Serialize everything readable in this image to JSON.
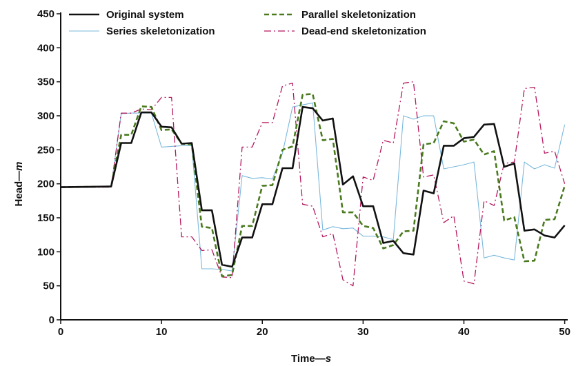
{
  "chart_data": {
    "type": "line",
    "xlabel": "Time",
    "xlabel_unit": "s",
    "ylabel": "Head",
    "ylabel_unit": "m",
    "label_dash": "—",
    "xlim": [
      0,
      50.3
    ],
    "ylim": [
      0,
      450
    ],
    "xticks": [
      0,
      10,
      20,
      30,
      40,
      50
    ],
    "yticks": [
      0,
      50,
      100,
      150,
      200,
      250,
      300,
      350,
      400,
      450
    ],
    "grid": false,
    "legend_position": "top",
    "series": [
      {
        "name": "Original system",
        "color": "#111111",
        "style": "solid-thick",
        "x": [
          0,
          5,
          6,
          7,
          8,
          9,
          10,
          11,
          12,
          13,
          14,
          15,
          16,
          17,
          18,
          19,
          20,
          21,
          22,
          23,
          24,
          25,
          26,
          27,
          28,
          29,
          30,
          31,
          32,
          33,
          34,
          35,
          36,
          37,
          38,
          39,
          40,
          41,
          42,
          43,
          44,
          45,
          46,
          47,
          48,
          49,
          50
        ],
        "y": [
          195,
          196,
          260,
          260,
          305,
          305,
          284,
          283,
          259,
          260,
          161,
          161,
          81,
          78,
          121,
          121,
          170,
          170,
          223,
          223,
          313,
          311,
          293,
          296,
          199,
          211,
          167,
          167,
          113,
          116,
          98,
          96,
          190,
          186,
          256,
          256,
          267,
          269,
          287,
          288,
          225,
          230,
          131,
          133,
          124,
          121,
          139
        ]
      },
      {
        "name": "Parallel skeletonization",
        "color": "#4a7a1e",
        "style": "dashed",
        "x": [
          0,
          5,
          6,
          7,
          8,
          9,
          10,
          11,
          12,
          13,
          14,
          15,
          16,
          17,
          18,
          19,
          20,
          21,
          22,
          23,
          24,
          25,
          26,
          27,
          28,
          29,
          30,
          31,
          32,
          33,
          34,
          35,
          36,
          37,
          38,
          39,
          40,
          41,
          42,
          43,
          44,
          45,
          46,
          47,
          48,
          49,
          50
        ],
        "y": [
          195,
          196,
          272,
          272,
          314,
          313,
          279,
          280,
          259,
          258,
          137,
          135,
          64,
          66,
          138,
          138,
          197,
          198,
          250,
          255,
          331,
          332,
          264,
          266,
          158,
          158,
          138,
          135,
          105,
          110,
          130,
          131,
          258,
          260,
          292,
          289,
          262,
          265,
          243,
          248,
          146,
          151,
          86,
          87,
          147,
          148,
          197
        ]
      },
      {
        "name": "Series skeletonization",
        "color": "#7ab8dc",
        "style": "solid-thin",
        "x": [
          0,
          5,
          6,
          7,
          8,
          9,
          10,
          11,
          12,
          13,
          14,
          15,
          16,
          17,
          18,
          19,
          20,
          21,
          22,
          23,
          24,
          25,
          26,
          27,
          28,
          29,
          30,
          31,
          32,
          33,
          34,
          35,
          36,
          37,
          38,
          39,
          40,
          41,
          42,
          43,
          44,
          45,
          46,
          47,
          48,
          49,
          50
        ],
        "y": [
          195,
          196,
          303,
          304,
          304,
          304,
          254,
          255,
          256,
          256,
          75,
          75,
          74,
          72,
          212,
          208,
          209,
          207,
          245,
          313,
          316,
          319,
          132,
          137,
          134,
          135,
          123,
          123,
          122,
          118,
          300,
          295,
          300,
          300,
          222,
          225,
          228,
          232,
          91,
          95,
          91,
          88,
          232,
          222,
          228,
          223,
          287
        ]
      },
      {
        "name": "Dead-end skeletonization",
        "color": "#b4185f",
        "style": "dashdot",
        "x": [
          0,
          5,
          6,
          7,
          8,
          9,
          10,
          11,
          12,
          13,
          14,
          15,
          16,
          17,
          18,
          19,
          20,
          21,
          22,
          23,
          24,
          25,
          26,
          27,
          28,
          29,
          30,
          31,
          32,
          33,
          34,
          35,
          36,
          37,
          38,
          39,
          40,
          41,
          42,
          43,
          44,
          45,
          46,
          47,
          48,
          49,
          50
        ],
        "y": [
          195,
          195,
          304,
          304,
          310,
          309,
          327,
          327,
          122,
          122,
          102,
          103,
          63,
          62,
          254,
          254,
          290,
          290,
          344,
          348,
          170,
          167,
          122,
          127,
          59,
          50,
          210,
          205,
          264,
          260,
          348,
          350,
          210,
          213,
          143,
          153,
          57,
          53,
          175,
          168,
          230,
          232,
          340,
          342,
          245,
          248,
          200
        ]
      }
    ]
  }
}
